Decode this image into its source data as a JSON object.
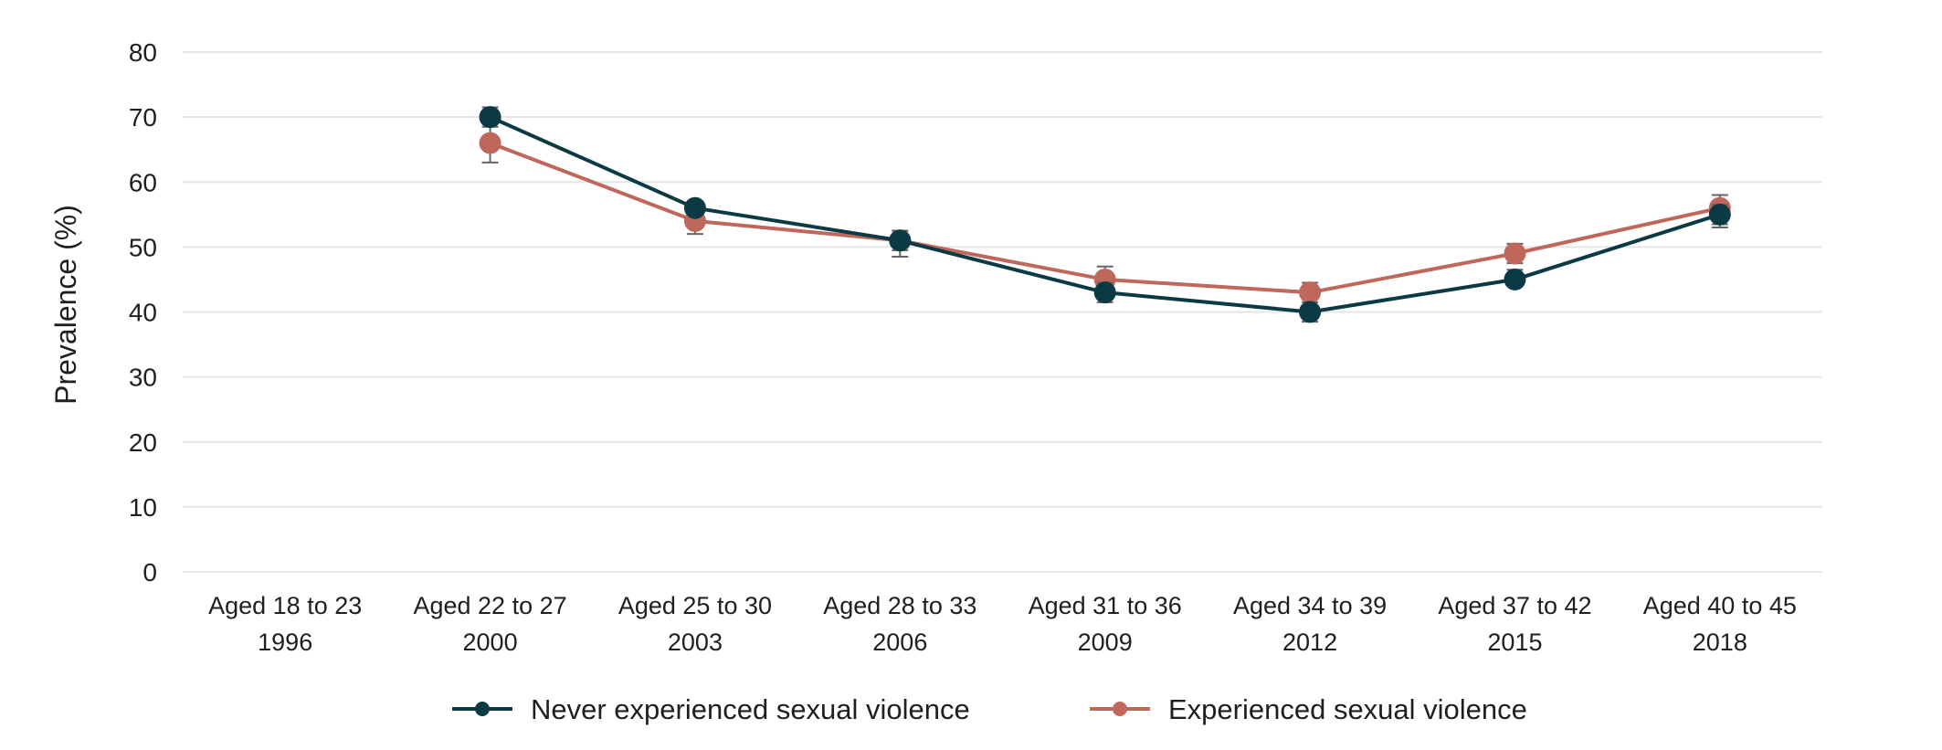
{
  "chart_data": {
    "type": "line",
    "title": "",
    "xlabel": "",
    "ylabel": "Prevalence (%)",
    "ylim": [
      0,
      80
    ],
    "yticks": [
      0,
      10,
      20,
      30,
      40,
      50,
      60,
      70,
      80
    ],
    "grid": true,
    "legend_position": "bottom",
    "categories": [
      [
        "Aged 18 to 23",
        "1996"
      ],
      [
        "Aged 22 to 27",
        "2000"
      ],
      [
        "Aged 25 to 30",
        "2003"
      ],
      [
        "Aged 28 to 33",
        "2006"
      ],
      [
        "Aged 31 to 36",
        "2009"
      ],
      [
        "Aged 34 to 39",
        "2012"
      ],
      [
        "Aged 37 to 42",
        "2015"
      ],
      [
        "Aged 40 to 45",
        "2018"
      ]
    ],
    "series": [
      {
        "name": "Never experienced sexual violence",
        "color": "#0b3a45",
        "values": [
          null,
          70,
          56,
          51,
          43,
          40,
          45,
          55
        ],
        "error_low": [
          null,
          68.5,
          55,
          49.5,
          41.5,
          38.5,
          44,
          53.5
        ],
        "error_high": [
          null,
          71.5,
          57,
          52.5,
          44.5,
          41.5,
          46.5,
          56.5
        ]
      },
      {
        "name": "Experienced sexual violence",
        "color": "#c0675c",
        "values": [
          null,
          66,
          54,
          51,
          45,
          43,
          49,
          56
        ],
        "error_low": [
          null,
          63,
          52,
          48.5,
          42.5,
          41,
          47.5,
          53
        ],
        "error_high": [
          null,
          69,
          56,
          52.5,
          47,
          44.5,
          50.5,
          58
        ]
      }
    ]
  }
}
